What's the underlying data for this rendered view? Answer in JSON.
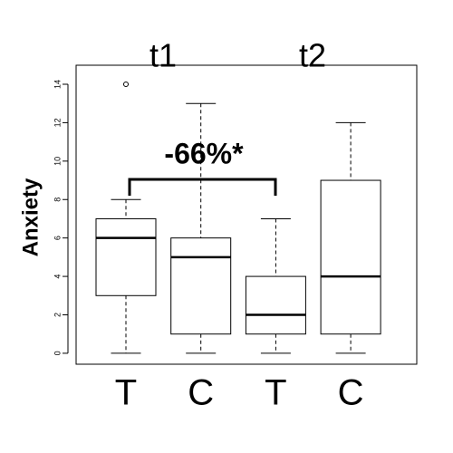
{
  "chart_data": {
    "type": "boxplot",
    "y_label": "Anxiety",
    "group_labels": [
      "t1",
      "t2"
    ],
    "annotation": "-66%*",
    "categories": [
      "T",
      "C",
      "T",
      "C"
    ],
    "boxes": [
      {
        "min": 0,
        "q1": 3,
        "median": 6,
        "q3": 7,
        "max": 8,
        "outliers": [
          14
        ]
      },
      {
        "min": 0,
        "q1": 1,
        "median": 5,
        "q3": 6,
        "max": 13,
        "outliers": []
      },
      {
        "min": 0,
        "q1": 1,
        "median": 2,
        "q3": 4,
        "max": 7,
        "outliers": []
      },
      {
        "min": 0,
        "q1": 1,
        "median": 4,
        "q3": 9,
        "max": 12,
        "outliers": []
      }
    ],
    "ylim": [
      -0.57,
      14.99
    ],
    "yticks": [
      0,
      2,
      4,
      6,
      8,
      10,
      12,
      14
    ]
  }
}
